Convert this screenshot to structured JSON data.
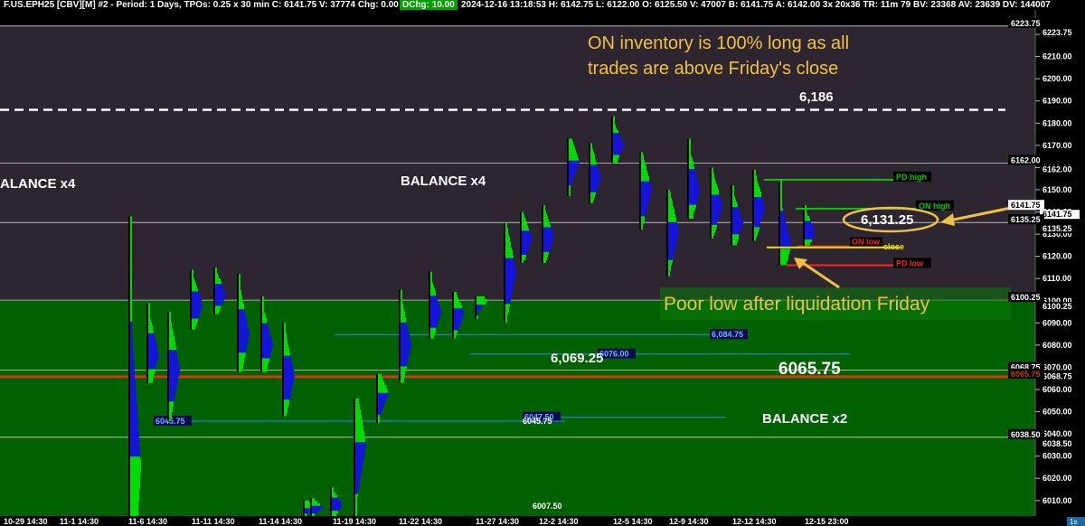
{
  "header": {
    "text": "F.US.EPH25 [CBV][M] #2 - Period: 1 Days, TPOs: 0.25 x 30 min   C: 6141.75   V: 37774   Chg: 0.00",
    "dchg": "DChg: 10.00",
    "tail": "2024-12-16 13:18:53  H: 6142.75  L: 6122.00  O: 6125.50  V: 47007  B: 6141.75  A: 6142.00  3x 20x36  TR: 11m 79 BV: 23368  AV: 23639  DV: 144007"
  },
  "colors": {
    "zone_upper": "#2d2630",
    "zone_lower": "#006100",
    "tpo_blue": "#1414e0",
    "tpo_green": "#00e000",
    "poc_line": "#cc3a12",
    "pd_high": "#00cc00",
    "on_high": "#00cc00",
    "on_low": "#ff2020",
    "pd_low": "#ff2020",
    "annotation": "#f0c040"
  },
  "annotations": {
    "inventory_line1": "ON inventory is 100% long as all",
    "inventory_line2": "trades are above Friday's close",
    "level_6186": "6,186",
    "balance_left": "ALANCE x4",
    "balance_mid": "BALANCE x4",
    "balance_x2": "BALANCE x2",
    "level_6131": "6,131.25",
    "poor_low": "Poor low after liquidation Friday",
    "level_6069": "6,069.25",
    "level_6065": "6065.75"
  },
  "chart_data": {
    "type": "tpo_profile",
    "instrument": "F.US.EPH25",
    "y_axis_ticks": [
      6220,
      6210,
      6200,
      6190,
      6180,
      6170,
      6160,
      6150,
      6140,
      6130,
      6120,
      6110,
      6100,
      6090,
      6080,
      6070,
      6060,
      6050,
      6040,
      6030,
      6020,
      6010
    ],
    "ylim": [
      6003,
      6231
    ],
    "x_axis_labels": [
      "10-29  14:30",
      "11-1  14:30",
      "11-6  14:30",
      "11-11  14:30",
      "11-14  14:30",
      "11-19  14:30",
      "11-22  14:30",
      "11-27  14:30",
      "12-2  14:30",
      "12-5  14:30",
      "12-9  14:30",
      "12-12  14:30",
      "12-15  23:00"
    ],
    "zones": [
      {
        "name": "upper",
        "from": 6100.25,
        "to": 6223.75
      },
      {
        "name": "lower",
        "from": 6003,
        "to": 6100.25
      }
    ],
    "horizontal_levels": [
      {
        "value": 6223.75,
        "label": "6223.75",
        "style": "white"
      },
      {
        "value": 6186,
        "label": "6,186",
        "style": "dashed"
      },
      {
        "value": 6162.0,
        "label": "6162.00",
        "style": "white"
      },
      {
        "value": 6141.75,
        "label": "6141.75",
        "style": "price"
      },
      {
        "value": 6135.25,
        "label": "6135.25",
        "style": "white"
      },
      {
        "value": 6100.25,
        "label": "6100.25",
        "style": "white"
      },
      {
        "value": 6068.75,
        "label": "6068.75",
        "style": "white"
      },
      {
        "value": 6065.75,
        "label": "6065.75",
        "style": "poc"
      },
      {
        "value": 6038.5,
        "label": "6038.50",
        "style": "white"
      }
    ],
    "profile_ref_lines": [
      {
        "value": 6084.75,
        "label": "6,084.75"
      },
      {
        "value": 6076.0,
        "label": "6076.00"
      },
      {
        "value": 6047.5,
        "label": "6047.50"
      },
      {
        "value": 6045.75,
        "label": "6045.75"
      },
      {
        "value": 6045.75,
        "label": "6045.75"
      },
      {
        "value": 6007.5,
        "label": "6007.50"
      }
    ],
    "key_levels": [
      {
        "name": "PD high",
        "value": 6154.5
      },
      {
        "name": "ON high",
        "value": 6141.5
      },
      {
        "name": "ON low",
        "value": 6124.5
      },
      {
        "name": "close",
        "value": 6124.0
      },
      {
        "name": "PD low",
        "value": 6116.0
      }
    ],
    "sessions": [
      {
        "low": 6003,
        "high": 6138,
        "poc": 6025
      },
      {
        "low": 6063,
        "high": 6099,
        "poc": 6076
      },
      {
        "low": 6046,
        "high": 6095,
        "poc": 6069
      },
      {
        "low": 6087,
        "high": 6114,
        "poc": 6098
      },
      {
        "low": 6094,
        "high": 6115,
        "poc": 6103
      },
      {
        "low": 6068,
        "high": 6112,
        "poc": 6085
      },
      {
        "low": 6068,
        "high": 6102,
        "poc": 6080
      },
      {
        "low": 6048,
        "high": 6090,
        "poc": 6066
      },
      {
        "low": 6003,
        "high": 6010,
        "poc": 6007
      },
      {
        "low": 6003,
        "high": 6011,
        "poc": 6007
      },
      {
        "low": 6003,
        "high": 6016,
        "poc": 6008
      },
      {
        "low": 6003,
        "high": 6056,
        "poc": 6035
      },
      {
        "low": 6045,
        "high": 6067,
        "poc": 6058
      },
      {
        "low": 6063,
        "high": 6105,
        "poc": 6080
      },
      {
        "low": 6083,
        "high": 6113,
        "poc": 6095
      },
      {
        "low": 6083,
        "high": 6104,
        "poc": 6094
      },
      {
        "low": 6092,
        "high": 6102,
        "poc": 6100
      },
      {
        "low": 6090,
        "high": 6135,
        "poc": 6113
      },
      {
        "low": 6117,
        "high": 6140,
        "poc": 6128
      },
      {
        "low": 6117,
        "high": 6143,
        "poc": 6129
      },
      {
        "low": 6147,
        "high": 6173,
        "poc": 6163
      },
      {
        "low": 6144,
        "high": 6171,
        "poc": 6156
      },
      {
        "low": 6162,
        "high": 6183,
        "poc": 6170
      },
      {
        "low": 6132,
        "high": 6167,
        "poc": 6150
      },
      {
        "low": 6111,
        "high": 6150,
        "poc": 6131
      },
      {
        "low": 6137,
        "high": 6173,
        "poc": 6150
      },
      {
        "low": 6128,
        "high": 6160,
        "poc": 6143
      },
      {
        "low": 6125,
        "high": 6152,
        "poc": 6135
      },
      {
        "low": 6127,
        "high": 6159,
        "poc": 6142
      },
      {
        "low": 6116,
        "high": 6154,
        "poc": 6125
      },
      {
        "low": 6124,
        "high": 6143,
        "poc": 6131
      }
    ]
  }
}
